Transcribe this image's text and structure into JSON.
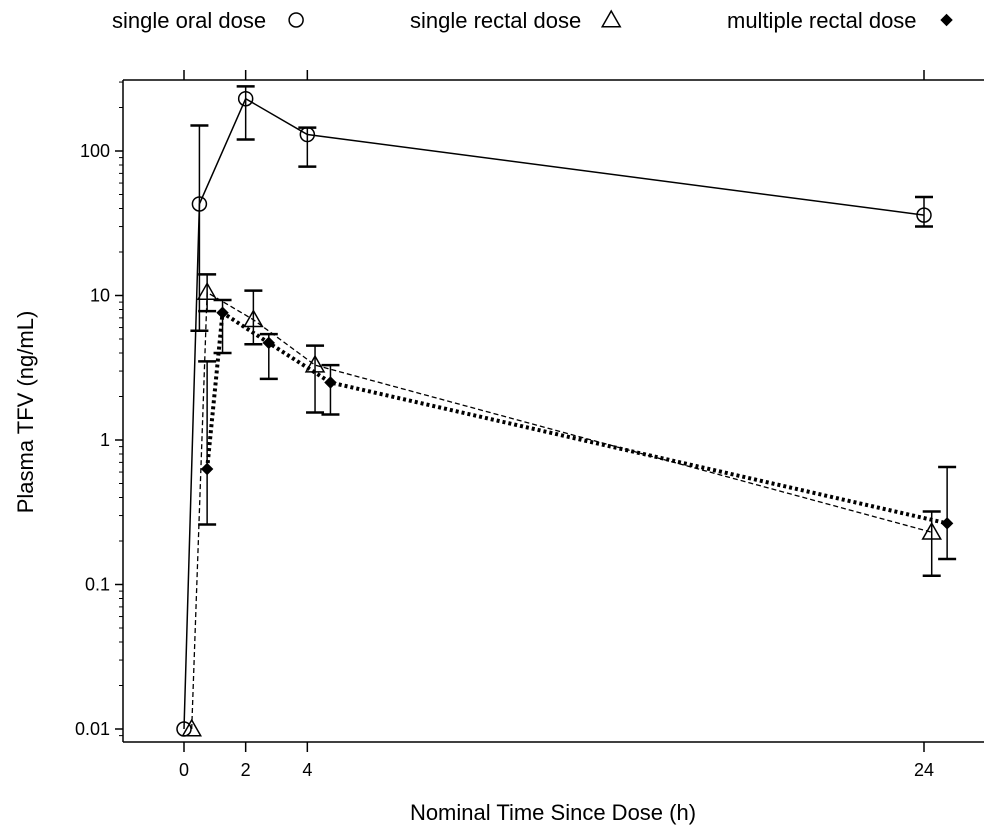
{
  "chart_data": {
    "type": "line",
    "title": "",
    "xlabel": "Nominal Time Since Dose (h)",
    "ylabel": "Plasma TFV (ng/mL)",
    "x_scale": "linear",
    "y_scale": "log",
    "xlim": [
      -2,
      26
    ],
    "ylim": [
      0.008,
      300
    ],
    "x_ticks": [
      0,
      2,
      4,
      24
    ],
    "x_tick_labels": [
      "0",
      "2",
      "4",
      "24"
    ],
    "y_ticks": [
      0.01,
      0.1,
      1,
      10,
      100
    ],
    "y_tick_labels": [
      "0.01",
      "0.1",
      "1",
      "10",
      "100"
    ],
    "grid": false,
    "legend_position": "top",
    "series": [
      {
        "name": "single oral dose",
        "marker": "open-circle",
        "line": "solid",
        "color": "#000000",
        "points": [
          {
            "x": 0,
            "y": 0.01
          },
          {
            "x": 0.5,
            "y": 43,
            "err_low": 5.7,
            "err_high": 150
          },
          {
            "x": 2,
            "y": 230,
            "err_low": 120,
            "err_high": 280
          },
          {
            "x": 4,
            "y": 130,
            "err_low": 78,
            "err_high": 145
          },
          {
            "x": 24,
            "y": 36,
            "err_low": 30,
            "err_high": 48
          }
        ]
      },
      {
        "name": "single rectal dose",
        "marker": "open-triangle",
        "line": "dashed",
        "color": "#000000",
        "points": [
          {
            "x": 0.25,
            "y": 0.01
          },
          {
            "x": 0.75,
            "y": 10.5,
            "err_low": 7.8,
            "err_high": 14
          },
          {
            "x": 2.25,
            "y": 6.8,
            "err_low": 4.6,
            "err_high": 10.8
          },
          {
            "x": 4.25,
            "y": 3.3,
            "err_low": 1.55,
            "err_high": 4.5
          },
          {
            "x": 24.25,
            "y": 0.23,
            "err_low": 0.115,
            "err_high": 0.32
          }
        ]
      },
      {
        "name": "multiple rectal dose",
        "marker": "filled-diamond",
        "line": "thick-dotted",
        "color": "#000000",
        "points": [
          {
            "x": 0.75,
            "y": 0.63,
            "err_low": 0.26,
            "err_high": 3.5
          },
          {
            "x": 1.25,
            "y": 7.6,
            "err_low": 4.0,
            "err_high": 9.3
          },
          {
            "x": 2.75,
            "y": 4.7,
            "err_low": 2.65,
            "err_high": 5.4
          },
          {
            "x": 4.75,
            "y": 2.5,
            "err_low": 1.5,
            "err_high": 3.3
          },
          {
            "x": 24.75,
            "y": 0.265,
            "err_low": 0.15,
            "err_high": 0.65
          }
        ]
      }
    ]
  }
}
